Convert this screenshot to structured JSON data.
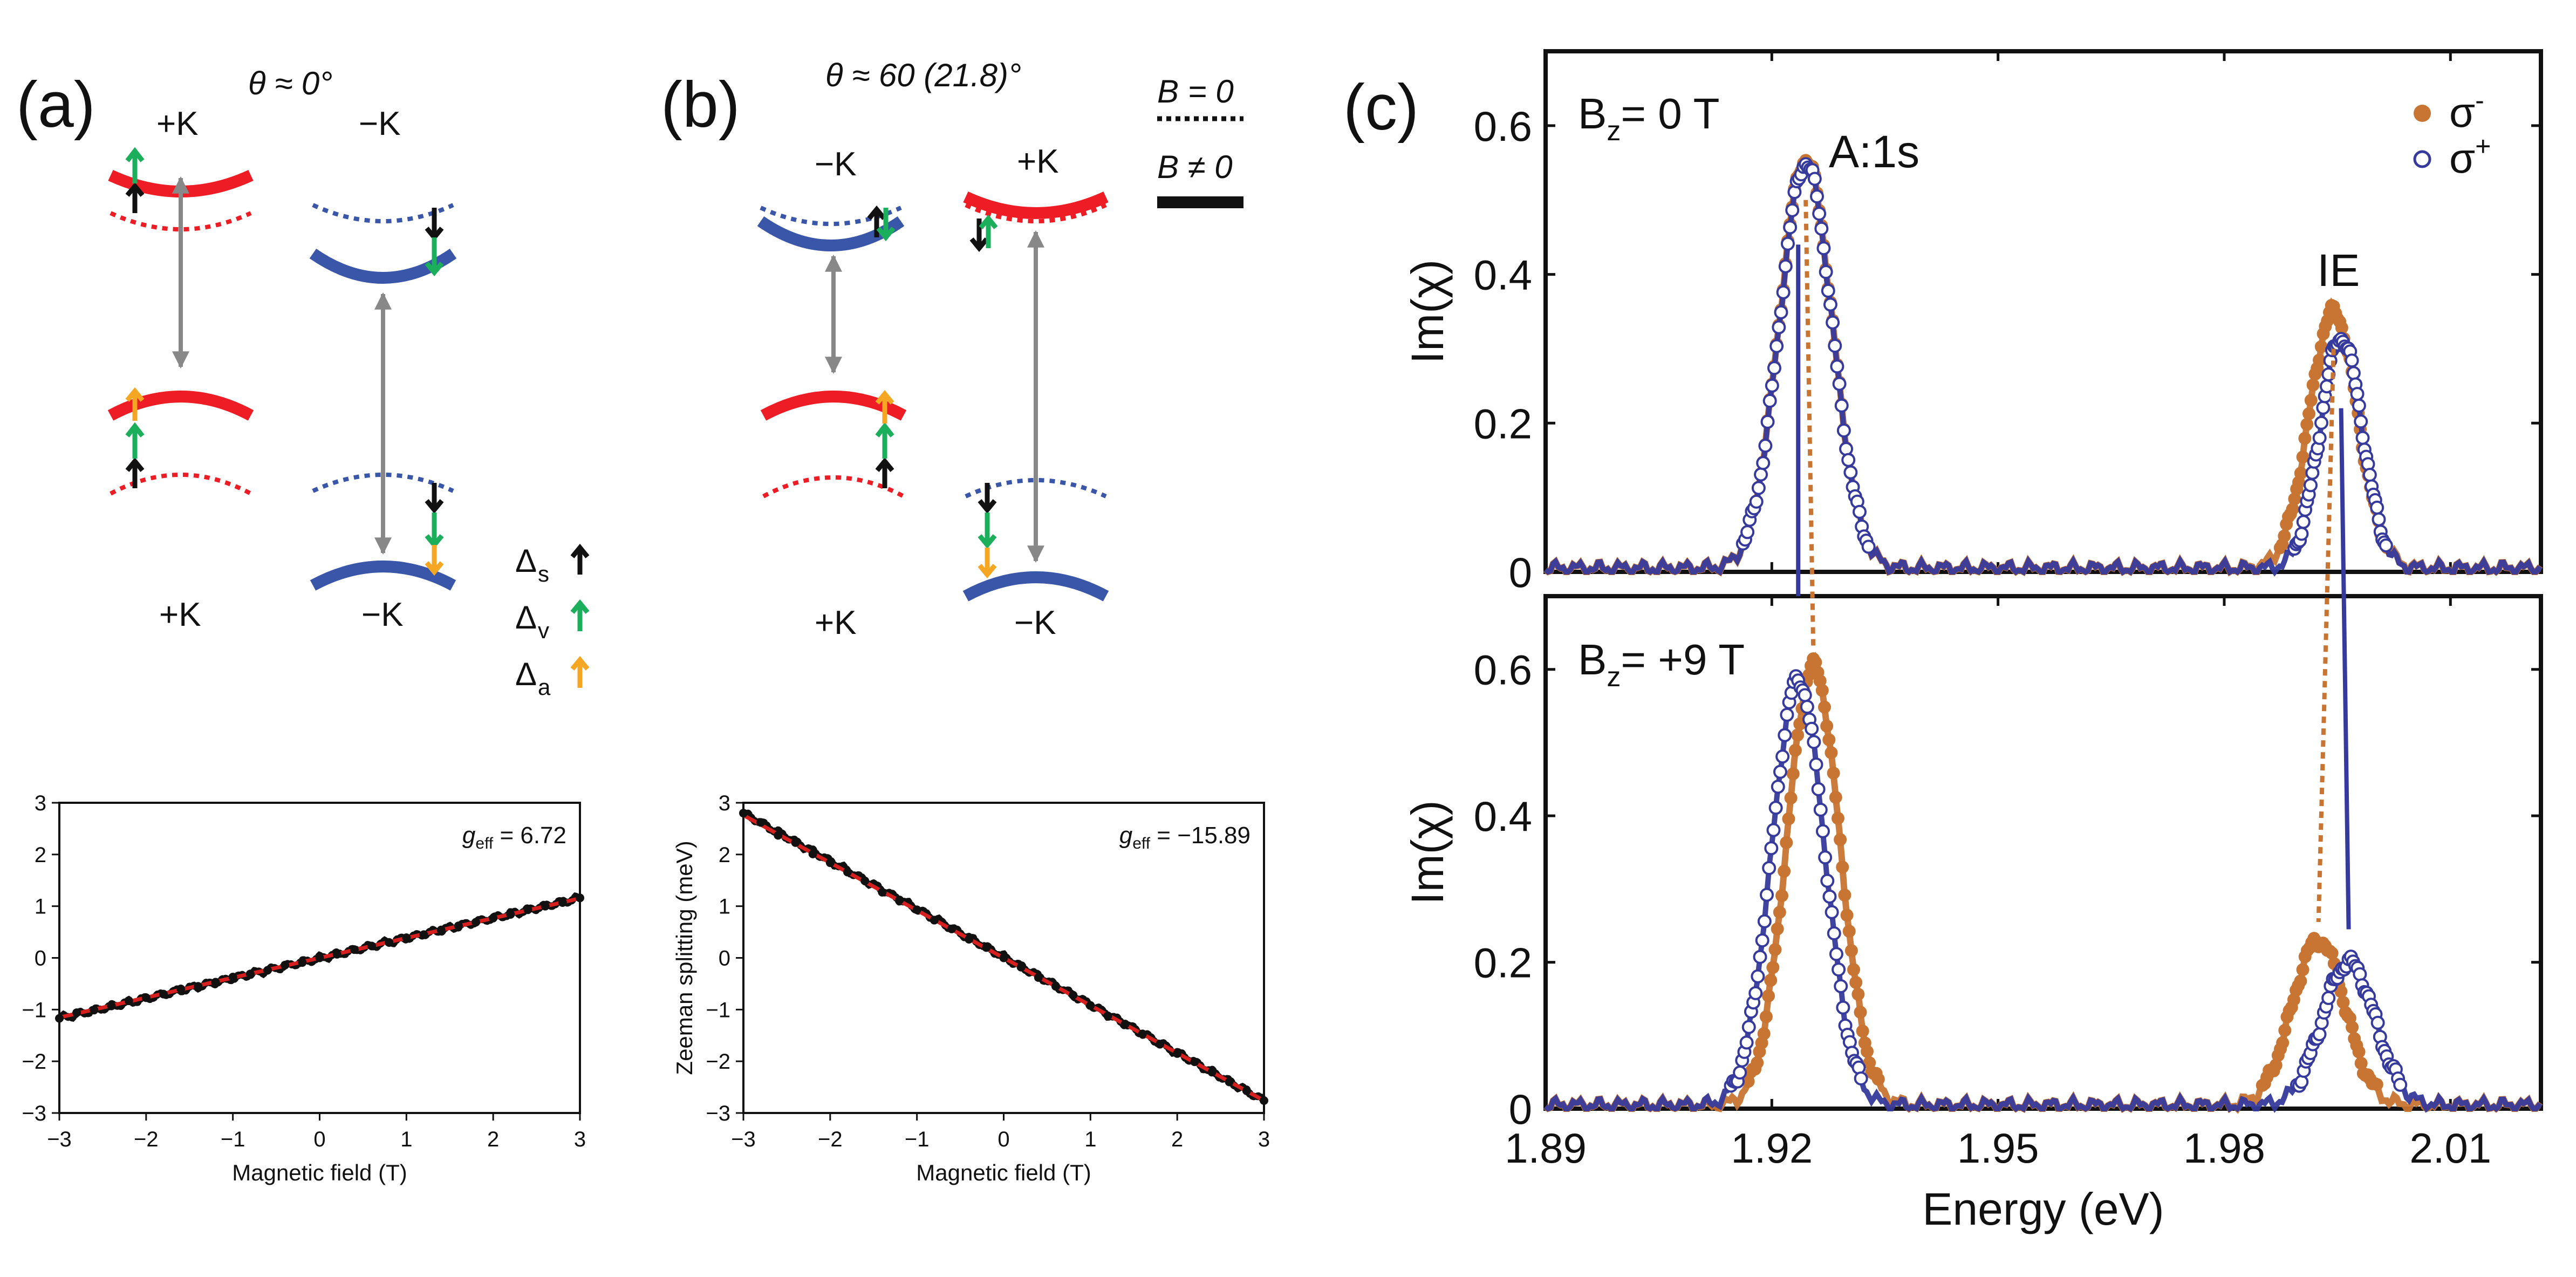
{
  "colors": {
    "red": "#EE1C25",
    "blue": "#3A56A8",
    "black": "#111111",
    "green": "#1BAF5C",
    "yellow": "#F5A623",
    "grey": "#888888",
    "orange": "#C87533",
    "navy": "#363A9C",
    "fit_red": "#D62020"
  },
  "panel_a": {
    "label": "(a)",
    "angle": "θ ≈ 0°",
    "top_left": "+K",
    "top_right": "−K",
    "bottom_left": "+K",
    "bottom_right": "−K"
  },
  "panel_b": {
    "label": "(b)",
    "angle": "θ ≈ 60 (21.8)°",
    "top_left": "−K",
    "top_right": "+K",
    "bottom_left": "+K",
    "bottom_right": "−K",
    "legend_b0": "B = 0",
    "legend_bn0": "B ≠ 0"
  },
  "delta_legend": {
    "s": {
      "sym": "Δ",
      "sub": "s"
    },
    "v": {
      "sym": "Δ",
      "sub": "v"
    },
    "a": {
      "sym": "Δ",
      "sub": "a"
    }
  },
  "panel_c": {
    "label": "(c)",
    "top_title": "B",
    "top_title_sub": "z",
    "top_title_rest": "= 0 T",
    "bottom_title": "B",
    "bottom_title_sub": "z",
    "bottom_title_rest": "= +9 T",
    "peak_label_1": "A:1s",
    "peak_label_2": "IE",
    "legend_minus": "σ",
    "legend_minus_sup": "-",
    "legend_plus": "σ",
    "legend_plus_sup": "+"
  },
  "chart_data": [
    {
      "id": "zeeman_a",
      "type": "scatter",
      "xlabel": "Magnetic field (T)",
      "ylabel": "",
      "xlim": [
        -3,
        3
      ],
      "ylim": [
        -3,
        3
      ],
      "xticks": [
        -3,
        -2,
        -1,
        0,
        1,
        2,
        3
      ],
      "yticks": [
        -3,
        -2,
        -1,
        0,
        1,
        2,
        3
      ],
      "annotation": {
        "g": "g",
        "sub": "eff",
        "text": " = 6.72"
      },
      "fit": {
        "slope": 0.384,
        "intercept": 0.0
      },
      "x": [
        -3.0,
        -2.8,
        -2.6,
        -2.4,
        -2.2,
        -2.0,
        -1.8,
        -1.6,
        -1.4,
        -1.2,
        -1.0,
        -0.8,
        -0.6,
        -0.4,
        -0.2,
        0.0,
        0.2,
        0.4,
        0.6,
        0.8,
        1.0,
        1.2,
        1.4,
        1.6,
        1.8,
        2.0,
        2.2,
        2.4,
        2.6,
        2.8,
        3.0
      ],
      "y": [
        -1.17,
        -1.06,
        -1.01,
        -0.93,
        -0.83,
        -0.77,
        -0.7,
        -0.6,
        -0.55,
        -0.47,
        -0.37,
        -0.31,
        -0.24,
        -0.14,
        -0.09,
        0.0,
        0.07,
        0.16,
        0.23,
        0.3,
        0.39,
        0.45,
        0.54,
        0.62,
        0.69,
        0.77,
        0.84,
        0.93,
        1.0,
        1.07,
        1.16
      ]
    },
    {
      "id": "zeeman_b",
      "type": "scatter",
      "xlabel": "Magnetic field (T)",
      "ylabel": "Zeeman splitting (meV)",
      "xlim": [
        -3,
        3
      ],
      "ylim": [
        -3,
        3
      ],
      "xticks": [
        -3,
        -2,
        -1,
        0,
        1,
        2,
        3
      ],
      "yticks": [
        -3,
        -2,
        -1,
        0,
        1,
        2,
        3
      ],
      "annotation": {
        "g": "g",
        "sub": "eff",
        "text": " = −15.89"
      },
      "fit": {
        "slope": -0.92,
        "intercept": 0.0
      },
      "x": [
        -3.0,
        -2.8,
        -2.6,
        -2.4,
        -2.2,
        -2.0,
        -1.8,
        -1.6,
        -1.4,
        -1.2,
        -1.0,
        -0.8,
        -0.6,
        -0.4,
        -0.2,
        0.0,
        0.2,
        0.4,
        0.6,
        0.8,
        1.0,
        1.2,
        1.4,
        1.6,
        1.8,
        2.0,
        2.2,
        2.4,
        2.6,
        2.8,
        3.0
      ],
      "y": [
        2.8,
        2.62,
        2.37,
        2.23,
        2.01,
        1.84,
        1.66,
        1.49,
        1.27,
        1.12,
        0.93,
        0.73,
        0.56,
        0.36,
        0.2,
        0.0,
        -0.18,
        -0.38,
        -0.55,
        -0.72,
        -0.92,
        -1.12,
        -1.28,
        -1.47,
        -1.67,
        -1.85,
        -2.01,
        -2.21,
        -2.4,
        -2.57,
        -2.76
      ]
    },
    {
      "id": "spectra_0T",
      "type": "line",
      "title": "B_z = 0 T",
      "xlabel": "",
      "ylabel": "Im(χ)",
      "xlim": [
        1.89,
        2.022
      ],
      "ylim": [
        0,
        0.7
      ],
      "xticks": [
        1.89,
        1.92,
        1.95,
        1.98,
        2.01
      ],
      "yticks": [
        0,
        0.2,
        0.4,
        0.6
      ],
      "ytick_labels": [
        "0",
        "0.2",
        "0.4",
        "0.6"
      ],
      "series": [
        {
          "name": "σ-",
          "style": "filled",
          "peaks": [
            {
              "center": 1.9245,
              "amp": 0.55,
              "width": 0.0035
            },
            {
              "center": 1.9945,
              "amp": 0.345,
              "width": 0.0032
            }
          ],
          "baseline": 0.005
        },
        {
          "name": "σ+",
          "style": "open",
          "peaks": [
            {
              "center": 1.9245,
              "amp": 0.545,
              "width": 0.0035
            },
            {
              "center": 1.9955,
              "amp": 0.31,
              "width": 0.0028
            }
          ],
          "baseline": 0.005
        }
      ],
      "markers": [
        {
          "series": "σ+",
          "x": 1.9235,
          "y_top": 0.44
        },
        {
          "series": "σ+",
          "x": 1.9955,
          "y_top": 0.22
        }
      ]
    },
    {
      "id": "spectra_9T",
      "type": "line",
      "title": "B_z = +9 T",
      "xlabel": "Energy (eV)",
      "ylabel": "Im(χ)",
      "xlim": [
        1.89,
        2.022
      ],
      "ylim": [
        0,
        0.7
      ],
      "xticks": [
        1.89,
        1.92,
        1.95,
        1.98,
        2.01
      ],
      "xtick_labels": [
        "1.89",
        "1.92",
        "1.95",
        "1.98",
        "2.01"
      ],
      "yticks": [
        0,
        0.2,
        0.4,
        0.6
      ],
      "ytick_labels": [
        "0",
        "0.2",
        "0.4",
        "0.6"
      ],
      "series": [
        {
          "name": "σ-",
          "style": "filled",
          "peaks": [
            {
              "center": 1.9255,
              "amp": 0.6,
              "width": 0.0035
            },
            {
              "center": 1.9925,
              "amp": 0.225,
              "width": 0.0035
            }
          ],
          "baseline": 0.005
        },
        {
          "name": "σ+",
          "style": "open",
          "peaks": [
            {
              "center": 1.9235,
              "amp": 0.58,
              "width": 0.0035
            },
            {
              "center": 1.9965,
              "amp": 0.195,
              "width": 0.0035
            }
          ],
          "baseline": 0.005
        }
      ]
    }
  ]
}
